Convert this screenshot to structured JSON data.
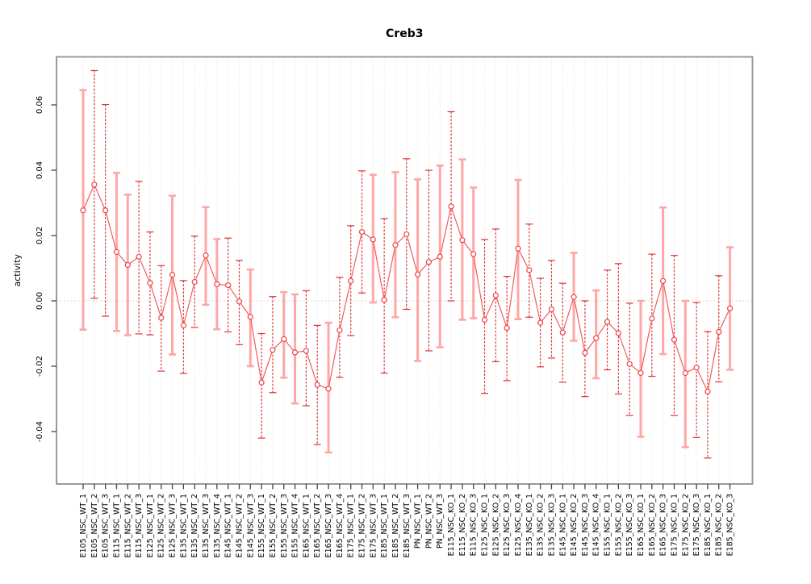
{
  "title": "Creb3",
  "axes": {
    "ylabel": "activity",
    "yticks": [
      -0.04,
      -0.02,
      0.0,
      0.02,
      0.04,
      0.06
    ],
    "ytick_labels": [
      "-0.04",
      "-0.02",
      "0.00",
      "0.02",
      "0.04",
      "0.06"
    ]
  },
  "colors": {
    "bar_solid": "#ffa6a6",
    "bar_dashed": "#e03232",
    "line": "#f15c5c",
    "point_stroke": "#ef4444",
    "point_fill": "#ffffff",
    "grid": "#dcdcdc",
    "zero_line": "#c8c8c8",
    "box": "#9a9a9a",
    "tick": "#444444"
  },
  "chart_data": {
    "type": "line",
    "title": "Creb3",
    "xlabel": "",
    "ylabel": "activity",
    "ylim": [
      -0.055,
      0.0755
    ],
    "grid": "vertical-dotted-per-category, dotted zero line",
    "legend": "none",
    "point_style": "open-circle with error bars, styles alternate pale-solid / red-dashed",
    "categories": [
      "E105_NSC_WT_1",
      "E105_NSC_WT_2",
      "E105_NSC_WT_3",
      "E115_NSC_WT_1",
      "E115_NSC_WT_2",
      "E115_NSC_WT_3",
      "E125_NSC_WT_1",
      "E125_NSC_WT_2",
      "E125_NSC_WT_3",
      "E135_NSC_WT_1",
      "E135_NSC_WT_2",
      "E135_NSC_WT_3",
      "E135_NSC_WT_4",
      "E145_NSC_WT_1",
      "E145_NSC_WT_2",
      "E145_NSC_WT_3",
      "E155_NSC_WT_1",
      "E155_NSC_WT_2",
      "E155_NSC_WT_3",
      "E155_NSC_WT_4",
      "E165_NSC_WT_1",
      "E165_NSC_WT_2",
      "E165_NSC_WT_3",
      "E165_NSC_WT_4",
      "E175_NSC_WT_1",
      "E175_NSC_WT_2",
      "E175_NSC_WT_3",
      "E185_NSC_WT_1",
      "E185_NSC_WT_2",
      "E185_NSC_WT_3",
      "PN_NSC_WT_1",
      "PN_NSC_WT_2",
      "PN_NSC_WT_3",
      "E115_NSC_KO_1",
      "E115_NSC_KO_2",
      "E115_NSC_KO_3",
      "E125_NSC_KO_1",
      "E125_NSC_KO_2",
      "E125_NSC_KO_3",
      "E125_NSC_KO_4",
      "E135_NSC_KO_1",
      "E135_NSC_KO_2",
      "E135_NSC_KO_3",
      "E145_NSC_KO_1",
      "E145_NSC_KO_2",
      "E145_NSC_KO_3",
      "E145_NSC_KO_4",
      "E155_NSC_KO_1",
      "E155_NSC_KO_2",
      "E155_NSC_KO_3",
      "E165_NSC_KO_1",
      "E165_NSC_KO_2",
      "E165_NSC_KO_3",
      "E175_NSC_KO_1",
      "E175_NSC_KO_2",
      "E175_NSC_KO_3",
      "E185_NSC_KO_1",
      "E185_NSC_KO_2",
      "E185_NSC_KO_3"
    ],
    "series": [
      {
        "name": "activity",
        "values": [
          0.0277,
          0.0356,
          0.0277,
          0.015,
          0.011,
          0.0135,
          0.0055,
          -0.0052,
          0.008,
          -0.0075,
          0.0058,
          0.0139,
          0.0051,
          0.0048,
          -0.0002,
          -0.0049,
          -0.025,
          -0.015,
          -0.0117,
          -0.0158,
          -0.0153,
          -0.0257,
          -0.0269,
          -0.009,
          0.0061,
          0.0211,
          0.0188,
          0.0003,
          0.0171,
          0.0204,
          0.0081,
          0.0119,
          0.0135,
          0.0289,
          0.0186,
          0.0143,
          -0.0058,
          0.0017,
          -0.0083,
          0.016,
          0.0094,
          -0.0067,
          -0.0026,
          -0.0097,
          0.0012,
          -0.0159,
          -0.0114,
          -0.0064,
          -0.0099,
          -0.0193,
          -0.0221,
          -0.0054,
          0.0061,
          -0.0119,
          -0.0221,
          -0.0204,
          -0.0278,
          -0.0095,
          -0.0023
        ]
      }
    ],
    "error_low": [
      -0.0088,
      0.0008,
      -0.0047,
      -0.0092,
      -0.0105,
      -0.0101,
      -0.0104,
      -0.0215,
      -0.0164,
      -0.0222,
      -0.0081,
      -0.0012,
      -0.0087,
      -0.0095,
      -0.0134,
      -0.02,
      -0.042,
      -0.0281,
      -0.0235,
      -0.0314,
      -0.0321,
      -0.044,
      -0.0464,
      -0.0234,
      -0.0106,
      0.0024,
      -0.0005,
      -0.0221,
      -0.005,
      -0.0026,
      -0.0184,
      -0.0153,
      -0.0142,
      0.0,
      -0.0058,
      -0.0053,
      -0.0283,
      -0.0186,
      -0.0244,
      -0.0056,
      -0.005,
      -0.0202,
      -0.0175,
      -0.0249,
      -0.0122,
      -0.0293,
      -0.0237,
      -0.0211,
      -0.0285,
      -0.0351,
      -0.0416,
      -0.0231,
      -0.0163,
      -0.0351,
      -0.0448,
      -0.0418,
      -0.0481,
      -0.0248,
      -0.0211
    ],
    "error_high": [
      0.0645,
      0.0705,
      0.0601,
      0.0392,
      0.0325,
      0.0366,
      0.0211,
      0.0108,
      0.0322,
      0.0062,
      0.0198,
      0.0287,
      0.0189,
      0.0192,
      0.0124,
      0.0096,
      -0.01,
      0.0013,
      0.0027,
      0.002,
      0.0031,
      -0.0075,
      -0.0067,
      0.0072,
      0.023,
      0.0398,
      0.0386,
      0.0252,
      0.0394,
      0.0435,
      0.0372,
      0.04,
      0.0414,
      0.0579,
      0.0433,
      0.0347,
      0.0188,
      0.022,
      0.0075,
      0.037,
      0.0235,
      0.0069,
      0.0124,
      0.0054,
      0.0147,
      0.0,
      0.0032,
      0.0094,
      0.0114,
      -0.0007,
      0.0,
      0.0143,
      0.0286,
      0.0139,
      0.0,
      -0.0005,
      -0.0094,
      0.0077,
      0.0164
    ],
    "bar_styles": [
      "solid",
      "dashed",
      "dashed",
      "solid",
      "solid",
      "dashed",
      "dashed",
      "dashed",
      "solid",
      "dashed",
      "dashed",
      "solid",
      "solid",
      "dashed",
      "dashed",
      "solid",
      "dashed",
      "dashed",
      "solid",
      "solid",
      "dashed",
      "dashed",
      "solid",
      "dashed",
      "dashed",
      "dashed",
      "solid",
      "dashed",
      "solid",
      "dashed",
      "solid",
      "dashed",
      "solid",
      "dashed",
      "solid",
      "solid",
      "dashed",
      "dashed",
      "dashed",
      "solid",
      "dashed",
      "dashed",
      "dashed",
      "dashed",
      "solid",
      "dashed",
      "solid",
      "dashed",
      "dashed",
      "dashed",
      "solid",
      "dashed",
      "solid",
      "dashed",
      "solid",
      "dashed",
      "dashed",
      "dashed",
      "solid"
    ]
  }
}
